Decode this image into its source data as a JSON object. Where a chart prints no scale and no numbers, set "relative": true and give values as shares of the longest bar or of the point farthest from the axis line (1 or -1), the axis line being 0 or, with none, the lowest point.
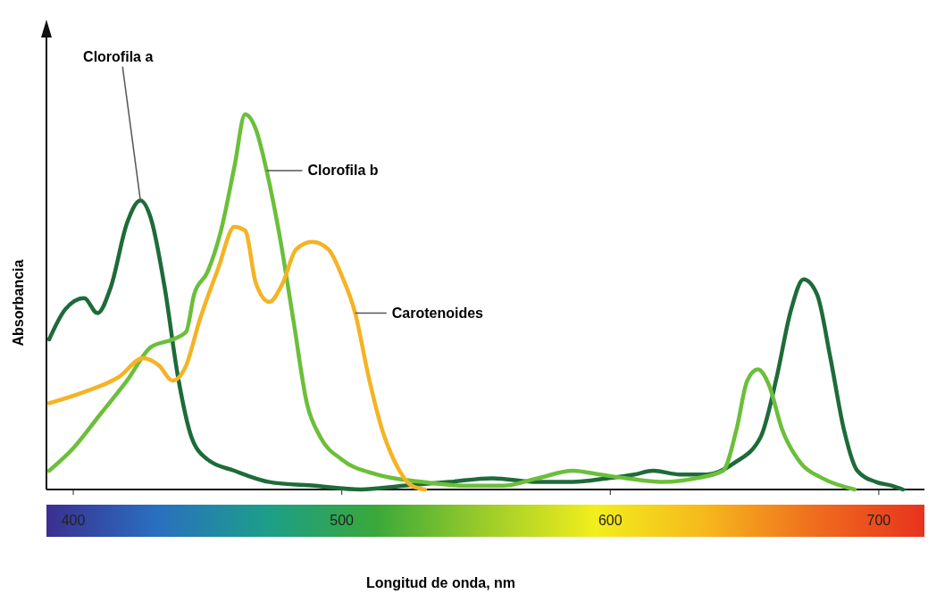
{
  "chart_data": {
    "type": "line",
    "relative": true,
    "xlabel": "Longitud de onda, nm",
    "ylabel": "Absorbancia",
    "xlim": [
      390,
      717
    ],
    "xticks": [
      400,
      500,
      600,
      700
    ],
    "grid": false,
    "legend": false,
    "marker": "none",
    "line_style": "solid",
    "series": [
      {
        "name": "Clorofila a",
        "color": "#1e6b3a",
        "x": [
          391,
          397,
          404,
          409,
          414,
          420,
          425,
          429,
          434,
          439,
          444,
          450,
          460,
          473,
          490,
          507,
          523,
          540,
          556,
          573,
          586,
          599,
          609,
          616,
          626,
          636,
          646,
          656,
          662,
          667,
          672,
          677,
          682,
          687,
          692,
          699,
          705,
          709
        ],
        "values": [
          0.4,
          0.48,
          0.51,
          0.47,
          0.54,
          0.71,
          0.77,
          0.72,
          0.54,
          0.3,
          0.14,
          0.08,
          0.05,
          0.02,
          0.01,
          0.0,
          0.01,
          0.02,
          0.03,
          0.02,
          0.02,
          0.03,
          0.04,
          0.05,
          0.04,
          0.04,
          0.07,
          0.14,
          0.3,
          0.47,
          0.56,
          0.52,
          0.35,
          0.16,
          0.05,
          0.02,
          0.01,
          0.0
        ]
      },
      {
        "name": "Clorofila b",
        "color": "#6bbf3a",
        "x": [
          391,
          400,
          410,
          420,
          429,
          437,
          442,
          445,
          450,
          455,
          460,
          464,
          468,
          472,
          477,
          482,
          487,
          492,
          500,
          513,
          530,
          546,
          560,
          573,
          586,
          596,
          606,
          619,
          632,
          642,
          647,
          651,
          655,
          659,
          664,
          671,
          679,
          691
        ],
        "values": [
          0.05,
          0.11,
          0.2,
          0.29,
          0.38,
          0.4,
          0.42,
          0.52,
          0.58,
          0.69,
          0.86,
          1.0,
          0.96,
          0.85,
          0.67,
          0.45,
          0.23,
          0.14,
          0.08,
          0.04,
          0.02,
          0.01,
          0.01,
          0.03,
          0.05,
          0.04,
          0.03,
          0.02,
          0.03,
          0.05,
          0.16,
          0.29,
          0.32,
          0.28,
          0.16,
          0.07,
          0.03,
          0.0
        ]
      },
      {
        "name": "Carotenoides",
        "color": "#f5b324",
        "x": [
          391,
          404,
          417,
          426,
          432,
          437,
          442,
          447,
          454,
          460,
          464,
          468,
          473,
          478,
          483,
          489,
          495,
          500,
          505,
          510,
          515,
          520,
          526,
          531
        ],
        "values": [
          0.23,
          0.26,
          0.3,
          0.35,
          0.33,
          0.29,
          0.33,
          0.45,
          0.59,
          0.7,
          0.69,
          0.55,
          0.5,
          0.55,
          0.64,
          0.66,
          0.64,
          0.57,
          0.47,
          0.3,
          0.16,
          0.07,
          0.01,
          0.0
        ]
      }
    ]
  }
}
